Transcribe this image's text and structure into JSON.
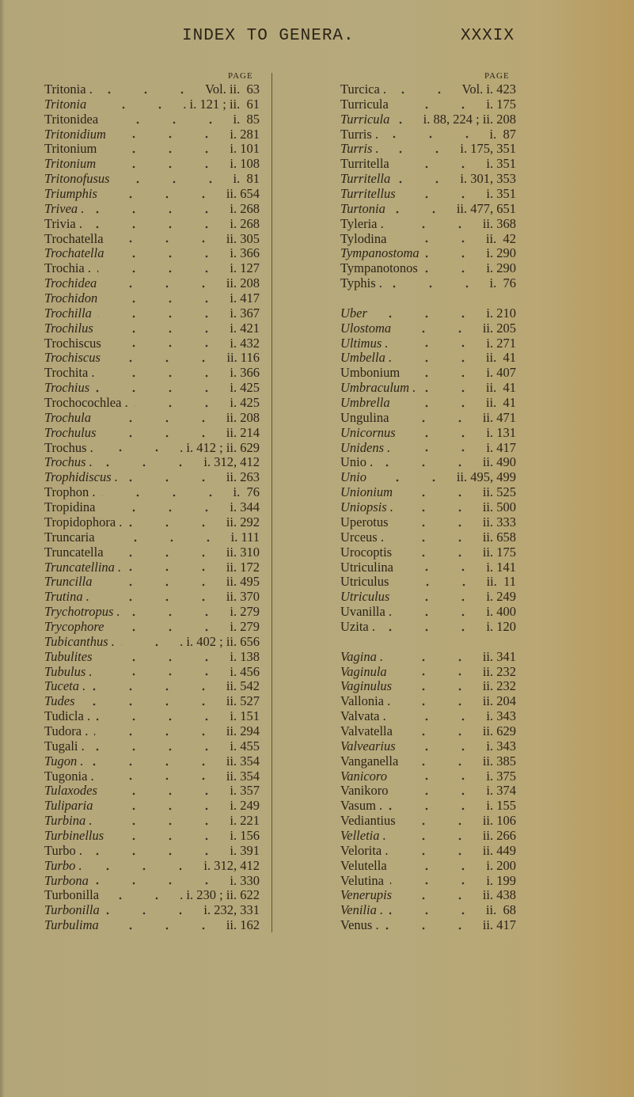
{
  "header": {
    "title": "INDEX TO GENERA.",
    "page_number": "XXXIX"
  },
  "page_label": "PAGE",
  "left_column": [
    {
      "name": "Tritonia .",
      "italic": false,
      "ref": "Vol. ii.  63"
    },
    {
      "name": "Tritonia",
      "italic": true,
      "ref": ". i. 121 ; ii.  61"
    },
    {
      "name": "Tritonidea",
      "italic": false,
      "ref": "i.  85"
    },
    {
      "name": "Tritonidium",
      "italic": true,
      "ref": "i. 281"
    },
    {
      "name": "Tritonium",
      "italic": false,
      "ref": "i. 101"
    },
    {
      "name": "Tritonium",
      "italic": true,
      "ref": "i. 108"
    },
    {
      "name": "Tritonofusus",
      "italic": true,
      "ref": "i.  81"
    },
    {
      "name": "Triumphis",
      "italic": true,
      "ref": "ii. 654"
    },
    {
      "name": "Trivea .",
      "italic": true,
      "ref": "i. 268"
    },
    {
      "name": "Trivia .",
      "italic": false,
      "ref": "i. 268"
    },
    {
      "name": "Trochatella",
      "italic": false,
      "ref": "ii. 305"
    },
    {
      "name": "Trochatella",
      "italic": true,
      "ref": "i. 366"
    },
    {
      "name": "Trochia .",
      "italic": false,
      "ref": "i. 127"
    },
    {
      "name": "Trochidea",
      "italic": true,
      "ref": "ii. 208"
    },
    {
      "name": "Trochidon",
      "italic": true,
      "ref": "i. 417"
    },
    {
      "name": "Trochilla",
      "italic": true,
      "ref": "i. 367"
    },
    {
      "name": "Trochilus",
      "italic": true,
      "ref": "i. 421"
    },
    {
      "name": "Trochiscus",
      "italic": false,
      "ref": "i. 432"
    },
    {
      "name": "Trochiscus",
      "italic": true,
      "ref": "ii. 116"
    },
    {
      "name": "Trochita .",
      "italic": false,
      "ref": "i. 366"
    },
    {
      "name": "Trochius",
      "italic": true,
      "ref": "i. 425"
    },
    {
      "name": "Trochocochlea .",
      "italic": false,
      "ref": "i. 425"
    },
    {
      "name": "Trochula",
      "italic": true,
      "ref": "ii. 208"
    },
    {
      "name": "Trochulus",
      "italic": true,
      "ref": "ii. 214"
    },
    {
      "name": "Trochus .",
      "italic": false,
      "ref": ". i. 412 ; ii. 629"
    },
    {
      "name": "Trochus .",
      "italic": true,
      "ref": "i. 312, 412"
    },
    {
      "name": "Trophidiscus .",
      "italic": true,
      "ref": "ii. 263"
    },
    {
      "name": "Trophon .",
      "italic": false,
      "ref": "i.  76"
    },
    {
      "name": "Tropidina",
      "italic": false,
      "ref": "i. 344"
    },
    {
      "name": "Tropidophora .",
      "italic": false,
      "ref": "ii. 292"
    },
    {
      "name": "Truncaria",
      "italic": false,
      "ref": "i. 111"
    },
    {
      "name": "Truncatella",
      "italic": false,
      "ref": "ii. 310"
    },
    {
      "name": "Truncatellina .",
      "italic": true,
      "ref": "ii. 172"
    },
    {
      "name": "Truncilla",
      "italic": true,
      "ref": "ii. 495"
    },
    {
      "name": "Trutina .",
      "italic": true,
      "ref": "ii. 370"
    },
    {
      "name": "Trychotropus .",
      "italic": true,
      "ref": "i. 279"
    },
    {
      "name": "Trycophore",
      "italic": true,
      "ref": "i. 279"
    },
    {
      "name": "Tubicanthus .",
      "italic": true,
      "ref": ". i. 402 ; ii. 656"
    },
    {
      "name": "Tubulites",
      "italic": true,
      "ref": "i. 138"
    },
    {
      "name": "Tubulus .",
      "italic": true,
      "ref": "i. 456"
    },
    {
      "name": "Tuceta .",
      "italic": true,
      "ref": "ii. 542"
    },
    {
      "name": "Tudes",
      "italic": true,
      "ref": "ii. 527"
    },
    {
      "name": "Tudicla .",
      "italic": false,
      "ref": "i. 151"
    },
    {
      "name": "Tudora .",
      "italic": false,
      "ref": "ii. 294"
    },
    {
      "name": "Tugali .",
      "italic": false,
      "ref": "i. 455"
    },
    {
      "name": "Tugon .",
      "italic": true,
      "ref": "ii. 354"
    },
    {
      "name": "Tugonia .",
      "italic": false,
      "ref": "ii. 354"
    },
    {
      "name": "Tulaxodes",
      "italic": true,
      "ref": "i. 357"
    },
    {
      "name": "Tuliparia",
      "italic": true,
      "ref": "i. 249"
    },
    {
      "name": "Turbina .",
      "italic": true,
      "ref": "i. 221"
    },
    {
      "name": "Turbinellus",
      "italic": true,
      "ref": "i. 156"
    },
    {
      "name": "Turbo .",
      "italic": false,
      "ref": "i. 391"
    },
    {
      "name": "Turbo .",
      "italic": true,
      "ref": "i. 312, 412"
    },
    {
      "name": "Turbona",
      "italic": true,
      "ref": "i. 330"
    },
    {
      "name": "Turbonilla",
      "italic": false,
      "ref": ". i. 230 ; ii. 622"
    },
    {
      "name": "Turbonilla",
      "italic": true,
      "ref": "i. 232, 331"
    },
    {
      "name": "Turbulima",
      "italic": true,
      "ref": "ii. 162"
    }
  ],
  "right_column": [
    {
      "name": "Turcica .",
      "italic": false,
      "ref": "Vol. i. 423"
    },
    {
      "name": "Turricula",
      "italic": false,
      "ref": "i. 175"
    },
    {
      "name": "Turricula",
      "italic": true,
      "ref": "i. 88, 224 ; ii. 208"
    },
    {
      "name": "Turris .",
      "italic": false,
      "ref": "i.  87"
    },
    {
      "name": "Turris .",
      "italic": true,
      "ref": "i. 175, 351"
    },
    {
      "name": "Turritella",
      "italic": false,
      "ref": "i. 351"
    },
    {
      "name": "Turritella",
      "italic": true,
      "ref": "i. 301, 353"
    },
    {
      "name": "Turritellus",
      "italic": true,
      "ref": "i. 351"
    },
    {
      "name": "Turtonia",
      "italic": true,
      "ref": "ii. 477, 651"
    },
    {
      "name": "Tyleria .",
      "italic": false,
      "ref": "ii. 368"
    },
    {
      "name": "Tylodina",
      "italic": false,
      "ref": "ii.  42"
    },
    {
      "name": "Tympanostoma",
      "italic": true,
      "ref": "i. 290"
    },
    {
      "name": "Tympanotonos",
      "italic": false,
      "ref": "i. 290"
    },
    {
      "name": "Typhis .",
      "italic": false,
      "ref": "i.  76"
    },
    null,
    {
      "name": "Uber",
      "italic": true,
      "ref": "i. 210"
    },
    {
      "name": "Ulostoma",
      "italic": true,
      "ref": "ii. 205"
    },
    {
      "name": "Ultimus .",
      "italic": true,
      "ref": "i. 271"
    },
    {
      "name": "Umbella .",
      "italic": true,
      "ref": "ii.  41"
    },
    {
      "name": "Umbonium",
      "italic": false,
      "ref": "i. 407"
    },
    {
      "name": "Umbraculum .",
      "italic": true,
      "ref": "ii.  41"
    },
    {
      "name": "Umbrella",
      "italic": true,
      "ref": "ii.  41"
    },
    {
      "name": "Ungulina",
      "italic": false,
      "ref": "ii. 471"
    },
    {
      "name": "Unicornus",
      "italic": true,
      "ref": "i. 131"
    },
    {
      "name": "Unidens .",
      "italic": true,
      "ref": "i. 417"
    },
    {
      "name": "Unio .",
      "italic": false,
      "ref": "ii. 490"
    },
    {
      "name": "Unio",
      "italic": true,
      "ref": "ii. 495, 499"
    },
    {
      "name": "Unionium",
      "italic": true,
      "ref": "ii. 525"
    },
    {
      "name": "Uniopsis .",
      "italic": true,
      "ref": "ii. 500"
    },
    {
      "name": "Uperotus",
      "italic": false,
      "ref": "ii. 333"
    },
    {
      "name": "Urceus .",
      "italic": false,
      "ref": "ii. 658"
    },
    {
      "name": "Urocoptis",
      "italic": false,
      "ref": "ii. 175"
    },
    {
      "name": "Utriculina",
      "italic": false,
      "ref": "i. 141"
    },
    {
      "name": "Utriculus",
      "italic": false,
      "ref": "ii.  11"
    },
    {
      "name": "Utriculus",
      "italic": true,
      "ref": "i. 249"
    },
    {
      "name": "Uvanilla .",
      "italic": false,
      "ref": "i. 400"
    },
    {
      "name": "Uzita .",
      "italic": false,
      "ref": "i. 120"
    },
    null,
    {
      "name": "Vagina .",
      "italic": true,
      "ref": "ii. 341"
    },
    {
      "name": "Vaginula",
      "italic": true,
      "ref": "ii. 232"
    },
    {
      "name": "Vaginulus",
      "italic": true,
      "ref": "ii. 232"
    },
    {
      "name": "Vallonia .",
      "italic": false,
      "ref": "ii. 204"
    },
    {
      "name": "Valvata .",
      "italic": false,
      "ref": "i. 343"
    },
    {
      "name": "Valvatella",
      "italic": false,
      "ref": "ii. 629"
    },
    {
      "name": "Valvearius",
      "italic": true,
      "ref": "i. 343"
    },
    {
      "name": "Vanganella",
      "italic": false,
      "ref": "ii. 385"
    },
    {
      "name": "Vanicoro",
      "italic": true,
      "ref": "i. 375"
    },
    {
      "name": "Vanikoro",
      "italic": false,
      "ref": "i. 374"
    },
    {
      "name": "Vasum .",
      "italic": false,
      "ref": "i. 155"
    },
    {
      "name": "Vediantius",
      "italic": false,
      "ref": "ii. 106"
    },
    {
      "name": "Velletia .",
      "italic": true,
      "ref": "ii. 266"
    },
    {
      "name": "Velorita .",
      "italic": false,
      "ref": "ii. 449"
    },
    {
      "name": "Velutella",
      "italic": false,
      "ref": "i. 200"
    },
    {
      "name": "Velutina",
      "italic": false,
      "ref": "i. 199"
    },
    {
      "name": "Venerupis",
      "italic": true,
      "ref": "ii. 438"
    },
    {
      "name": "Venilia .",
      "italic": true,
      "ref": "ii.  68"
    },
    {
      "name": "Venus .",
      "italic": false,
      "ref": "ii. 417"
    }
  ]
}
